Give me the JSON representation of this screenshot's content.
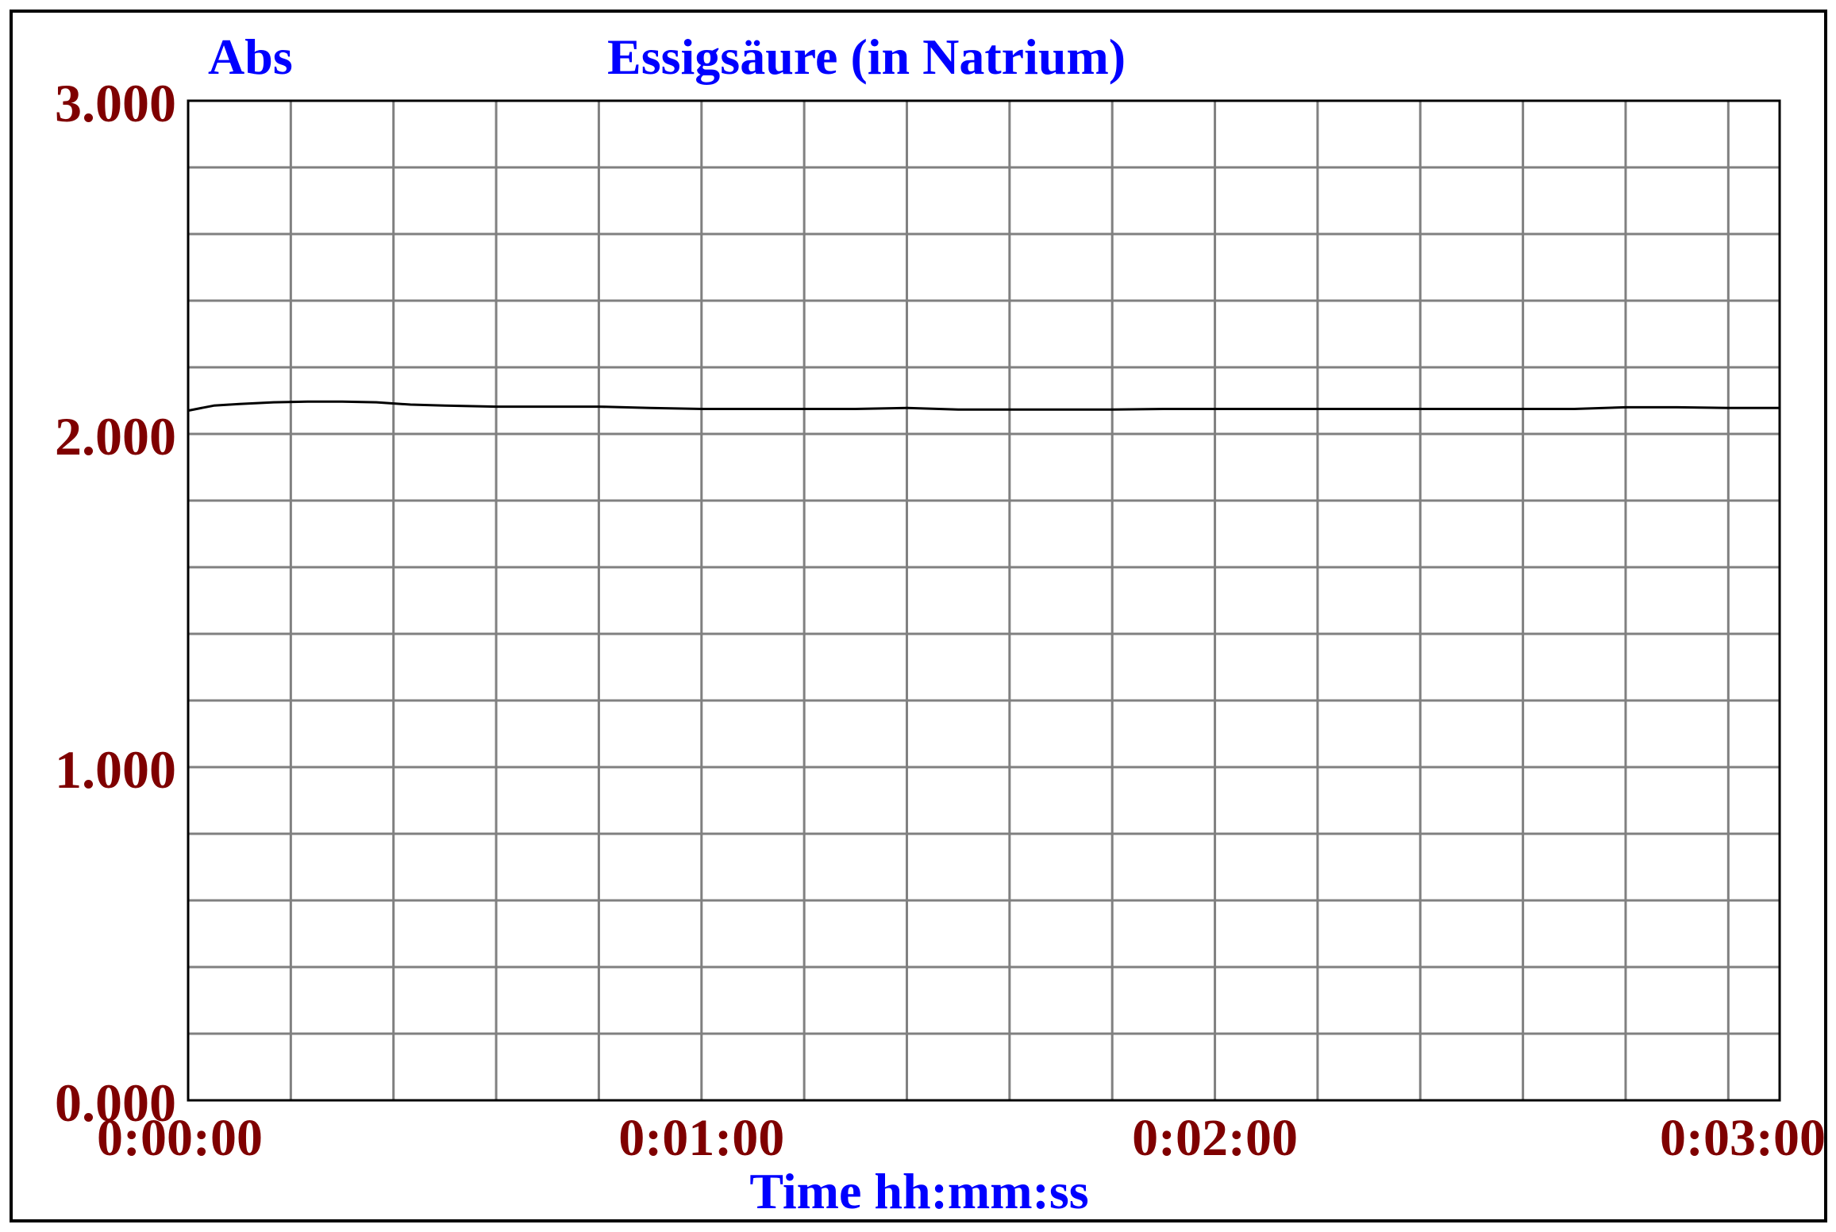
{
  "chart_data": {
    "type": "line",
    "title": "Essigsäure (in Natrium)",
    "ylabel": "Abs",
    "xlabel": "Time hh:mm:ss",
    "xlim": [
      0,
      186
    ],
    "ylim": [
      0,
      3
    ],
    "y_ticks": [
      {
        "value": 0,
        "label": "0.000"
      },
      {
        "value": 1,
        "label": "1.000"
      },
      {
        "value": 2,
        "label": "2.000"
      },
      {
        "value": 3,
        "label": "3.000"
      }
    ],
    "x_ticks": [
      {
        "value": 0,
        "label": "0:00:00"
      },
      {
        "value": 60,
        "label": "0:01:00"
      },
      {
        "value": 120,
        "label": "0:02:00"
      },
      {
        "value": 180,
        "label": "0:03:00"
      }
    ],
    "grid": true,
    "grid_x_step": 12,
    "grid_y_step": 0.2,
    "series": [
      {
        "color": "#000000",
        "x": [
          0,
          3,
          6,
          10,
          14,
          18,
          22,
          26,
          30,
          36,
          42,
          48,
          54,
          60,
          66,
          72,
          78,
          84,
          90,
          96,
          102,
          108,
          114,
          120,
          126,
          132,
          138,
          144,
          150,
          156,
          162,
          168,
          174,
          180,
          186
        ],
        "y": [
          2.07,
          2.085,
          2.09,
          2.095,
          2.097,
          2.097,
          2.095,
          2.088,
          2.085,
          2.082,
          2.082,
          2.082,
          2.078,
          2.075,
          2.075,
          2.075,
          2.075,
          2.078,
          2.073,
          2.073,
          2.073,
          2.073,
          2.075,
          2.075,
          2.075,
          2.075,
          2.075,
          2.075,
          2.075,
          2.075,
          2.075,
          2.08,
          2.08,
          2.078,
          2.078
        ]
      }
    ]
  },
  "colors": {
    "title": "#0000ff",
    "tick_labels": "#7f0000",
    "grid": "#808080",
    "line": "#000000",
    "border": "#000000"
  }
}
